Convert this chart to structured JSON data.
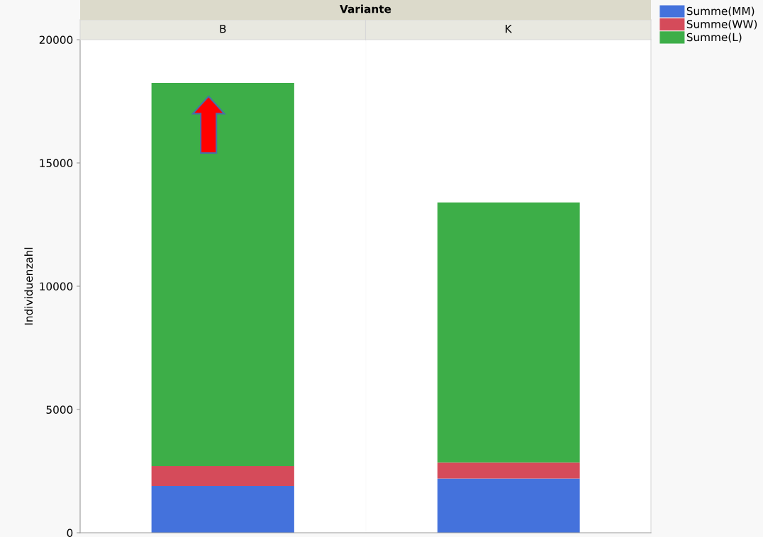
{
  "chart_data": {
    "type": "bar",
    "stacked": true,
    "xlabel": "Variante",
    "ylabel": "Individuenzahl",
    "categories": [
      "B",
      "K"
    ],
    "series": [
      {
        "name": "Summe(MM)",
        "color": "#4472dc",
        "values": [
          1900,
          2200
        ]
      },
      {
        "name": "Summe(WW)",
        "color": "#d54b5a",
        "values": [
          800,
          650
        ]
      },
      {
        "name": "Summe(L)",
        "color": "#3dae48",
        "values": [
          15550,
          10550
        ]
      }
    ],
    "ylim": [
      0,
      20000
    ],
    "yticks": [
      0,
      5000,
      10000,
      15000,
      20000
    ],
    "legend": "top right"
  }
}
